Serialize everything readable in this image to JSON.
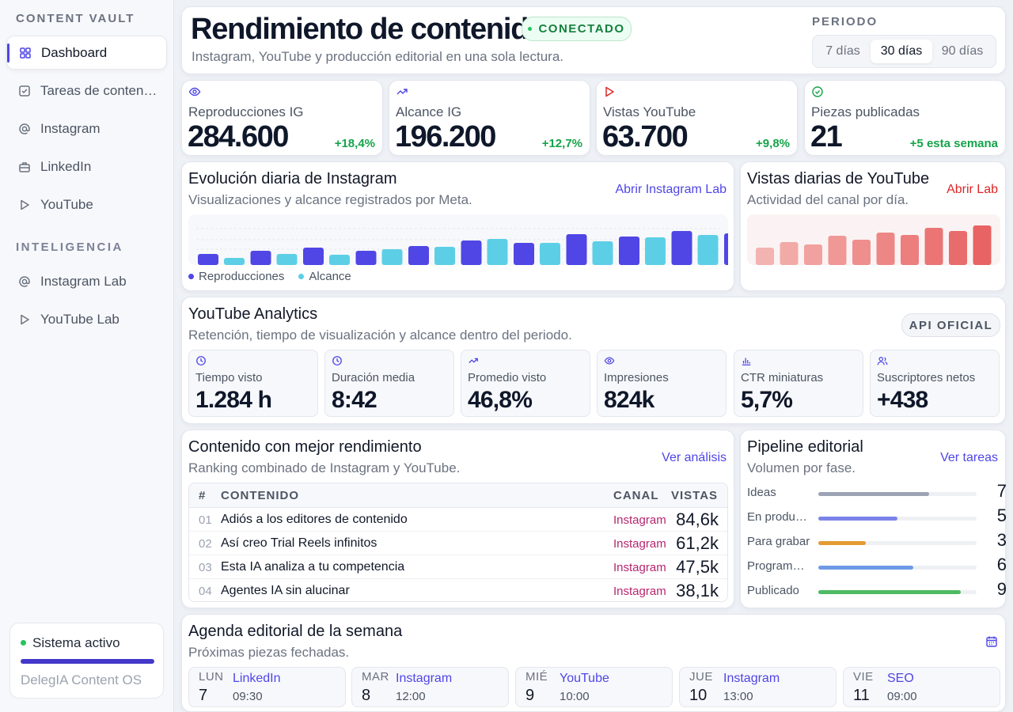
{
  "sidebar": {
    "brand": "CONTENT VAULT",
    "items": [
      {
        "label": "Dashboard",
        "icon": "grid-icon"
      },
      {
        "label": "Tareas de contenido",
        "icon": "checkbox-icon"
      },
      {
        "label": "Instagram",
        "icon": "at-icon"
      },
      {
        "label": "LinkedIn",
        "icon": "briefcase-icon"
      },
      {
        "label": "YouTube",
        "icon": "play-icon"
      }
    ],
    "section_title": "INTELIGENCIA",
    "intel_items": [
      {
        "label": "Instagram Lab",
        "icon": "at-icon"
      },
      {
        "label": "YouTube Lab",
        "icon": "play-icon"
      }
    ],
    "status": {
      "label": "Sistema activo",
      "os": "DelegIA Content OS"
    }
  },
  "header": {
    "title": "Rendimiento de contenido",
    "badge": "CONECTADO",
    "subtitle": "Instagram, YouTube y producción editorial en una sola lectura.",
    "period_label": "PERIODO",
    "periods": [
      "7 días",
      "30 días",
      "90 días"
    ],
    "period_selected": "30 días"
  },
  "kpis": [
    {
      "label": "Reproducciones IG",
      "value": "284.600",
      "change": "+18,4%",
      "icon": "eye-icon"
    },
    {
      "label": "Alcance IG",
      "value": "196.200",
      "change": "+12,7%",
      "icon": "trend-up-icon"
    },
    {
      "label": "Vistas YouTube",
      "value": "63.700",
      "change": "+9,8%",
      "icon": "play-icon"
    },
    {
      "label": "Piezas publicadas",
      "value": "21",
      "change": "+5 esta semana",
      "icon": "check-circle-icon"
    }
  ],
  "ig_chart": {
    "title": "Evolución diaria de Instagram",
    "subtitle": "Visualizaciones y alcance registrados por Meta.",
    "link": "Abrir Instagram Lab",
    "legend": [
      "Reproducciones",
      "Alcance"
    ]
  },
  "yt_chart": {
    "title": "Vistas diarias de YouTube",
    "subtitle": "Actividad del canal por día.",
    "link": "Abrir Lab"
  },
  "chart_data": [
    {
      "type": "bar",
      "series": [
        {
          "name": "Reproducciones",
          "values": [
            14,
            18,
            22,
            18,
            24,
            31,
            28,
            39,
            36,
            43,
            40,
            48
          ],
          "color": "#4f46e5"
        },
        {
          "name": "Alcance",
          "values": [
            9,
            14,
            13,
            20,
            23,
            33,
            28,
            30,
            35,
            38,
            33,
            43
          ],
          "color": "#5ccfe6"
        }
      ],
      "ylim": [
        0,
        52
      ]
    },
    {
      "type": "bar",
      "series": [
        {
          "values": [
            22,
            29,
            26,
            37,
            32,
            41,
            38,
            47,
            43,
            50
          ]
        }
      ],
      "ylim": [
        0,
        60
      ]
    }
  ],
  "yt_analytics": {
    "title": "YouTube Analytics",
    "subtitle": "Retención, tiempo de visualización y alcance dentro del periodo.",
    "badge": "API OFICIAL",
    "metrics": [
      {
        "label": "Tiempo visto",
        "value": "1.284 h",
        "icon": "clock-icon"
      },
      {
        "label": "Duración media",
        "value": "8:42",
        "icon": "clock-icon"
      },
      {
        "label": "Promedio visto",
        "value": "46,8%",
        "icon": "trend-up-icon"
      },
      {
        "label": "Impresiones",
        "value": "824k",
        "icon": "eye-icon"
      },
      {
        "label": "CTR miniaturas",
        "value": "5,7%",
        "icon": "bar-chart-icon"
      },
      {
        "label": "Suscriptores netos",
        "value": "+438",
        "icon": "users-icon"
      }
    ]
  },
  "top_content": {
    "title": "Contenido con mejor rendimiento",
    "subtitle": "Ranking combinado de Instagram y YouTube.",
    "link": "Ver análisis",
    "columns": [
      "#",
      "CONTENIDO",
      "CANAL",
      "VISTAS"
    ],
    "rows": [
      {
        "rank": "01",
        "title": "Adiós a los editores de contenido",
        "channel": "Instagram",
        "views": "84,6k"
      },
      {
        "rank": "02",
        "title": "Así creo Trial Reels infinitos",
        "channel": "Instagram",
        "views": "61,2k"
      },
      {
        "rank": "03",
        "title": "Esta IA analiza a tu competencia",
        "channel": "Instagram",
        "views": "47,5k"
      },
      {
        "rank": "04",
        "title": "Agentes IA sin alucinar",
        "channel": "Instagram",
        "views": "38,1k"
      }
    ]
  },
  "pipeline": {
    "title": "Pipeline editorial",
    "subtitle": "Volumen por fase.",
    "link": "Ver tareas",
    "stages": [
      {
        "label": "Ideas",
        "count": "7",
        "fraction": 0.7,
        "color": "#9ca3b4"
      },
      {
        "label": "En producción",
        "count": "5",
        "fraction": 0.5,
        "color": "#7c83e8"
      },
      {
        "label": "Para grabar",
        "count": "3",
        "fraction": 0.3,
        "color": "#e39b33"
      },
      {
        "label": "Programado",
        "count": "6",
        "fraction": 0.6,
        "color": "#6f9be6"
      },
      {
        "label": "Publicado",
        "count": "9",
        "fraction": 0.9,
        "color": "#4fba62"
      }
    ]
  },
  "agenda": {
    "title": "Agenda editorial de la semana",
    "subtitle": "Próximas piezas fechadas.",
    "icon": "calendar-icon",
    "items": [
      {
        "day": "LUN",
        "date": "7",
        "channel": "LinkedIn",
        "time": "09:30"
      },
      {
        "day": "MAR",
        "date": "8",
        "channel": "Instagram",
        "time": "12:00"
      },
      {
        "day": "MIÉ",
        "date": "9",
        "channel": "YouTube",
        "time": "10:00"
      },
      {
        "day": "JUE",
        "date": "10",
        "channel": "Instagram",
        "time": "13:00"
      },
      {
        "day": "VIE",
        "date": "11",
        "channel": "SEO",
        "time": "09:00"
      }
    ]
  },
  "colors": {
    "accent": "#4f46e5",
    "positive": "#16a34a",
    "youtube": "#dc2626",
    "instagram": "#b5256e"
  }
}
